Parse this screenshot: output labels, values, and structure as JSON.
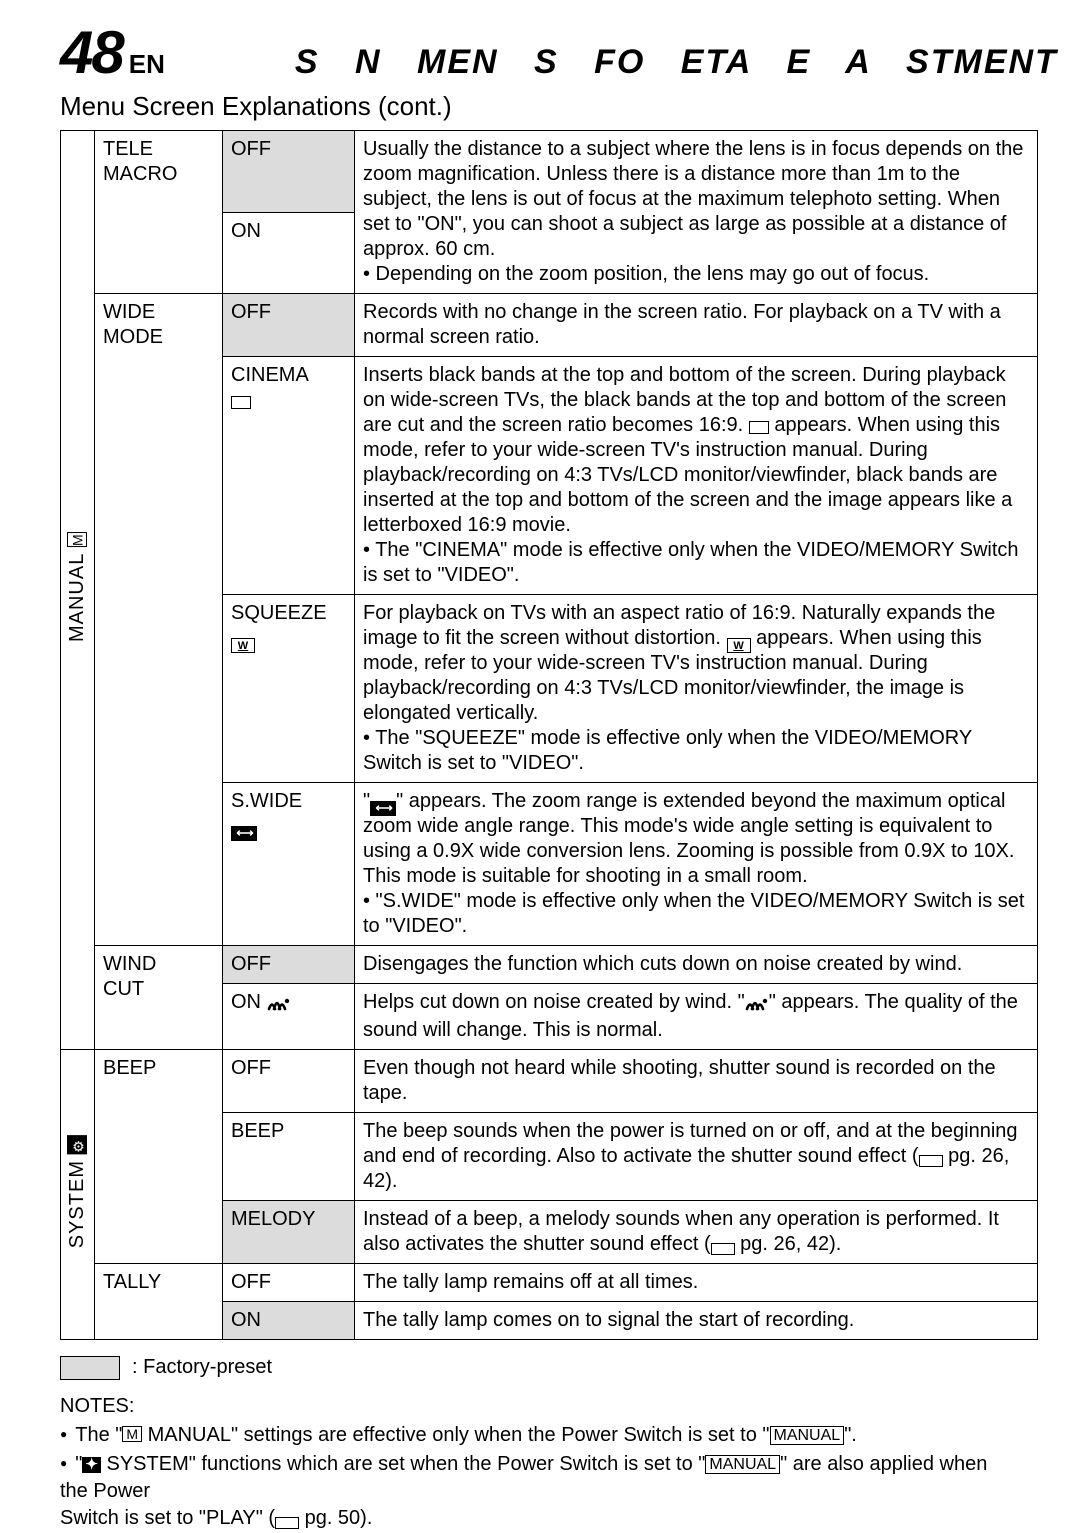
{
  "header": {
    "page_number": "48",
    "lang": "EN",
    "title": "S N   MEN  S FO    ETA  E   A     STMENT"
  },
  "subheading": "Menu Screen Explanations (cont.)",
  "categories": [
    {
      "side_label": "MANUAL",
      "side_icon": "M",
      "side_icon_style": "outline",
      "items": [
        {
          "name": "TELE MACRO",
          "rows": [
            {
              "option": "OFF",
              "preset": true,
              "rowspan_desc_from_first": 2,
              "desc_parts": [
                "Usually the distance to a subject where the lens is in focus depends on the zoom magnification. Unless there is a distance more than 1m to the subject, the lens is out of focus at the maximum telephoto setting. When set to \"ON\", you can shoot a subject as large as possible at a distance of approx. 60 cm.",
                "• Depending on the zoom position, the lens may go out of focus."
              ]
            },
            {
              "option": "ON",
              "preset": false
            }
          ]
        },
        {
          "name": "WIDE MODE",
          "rows": [
            {
              "option": "OFF",
              "preset": true,
              "desc_parts": [
                "Records with no change in the screen ratio. For playback on a TV with a normal screen ratio."
              ]
            },
            {
              "option": "CINEMA",
              "option_icon": "cinema",
              "preset": false,
              "desc_parts": [
                "Inserts black bands at the top and bottom of the screen. During playback on wide-screen TVs, the black bands at the top and bottom of the screen are cut and the screen ratio becomes 16:9. {ICON:cinema-sm} appears. When using this mode, refer to your wide-screen TV's instruction manual. During playback/recording on 4:3 TVs/LCD monitor/viewfinder, black bands are inserted at the top and bottom of the screen and the image appears like a letterboxed 16:9 movie.",
                "• The \"CINEMA\" mode is effective only when the VIDEO/MEMORY Switch is set to \"VIDEO\"."
              ]
            },
            {
              "option": "SQUEEZE",
              "option_icon": "squeeze",
              "preset": false,
              "desc_parts": [
                "For playback on TVs with an aspect ratio of 16:9. Naturally expands the image to fit the screen without distortion. {ICON:squeeze-sm} appears. When using this mode, refer to your wide-screen TV's instruction manual. During playback/recording on 4:3 TVs/LCD monitor/viewfinder, the image is elongated vertically.",
                "• The \"SQUEEZE\" mode is effective only when the VIDEO/MEMORY Switch is set to \"VIDEO\"."
              ]
            },
            {
              "option": "S.WIDE",
              "option_icon": "swide",
              "preset": false,
              "desc_parts": [
                "\"{ICON:swide-sm}\" appears. The zoom range is extended beyond the maximum optical zoom wide angle range. This mode's wide angle setting is equivalent to using a 0.9X wide conversion lens. Zooming is possible from 0.9X to 10X. This mode is suitable for shooting in a small room.",
                "• \"S.WIDE\" mode is effective only when the VIDEO/MEMORY Switch is set to \"VIDEO\"."
              ]
            }
          ]
        },
        {
          "name": "WIND CUT",
          "rows": [
            {
              "option": "OFF",
              "preset": true,
              "desc_parts": [
                "Disengages the function which cuts down on noise created by wind."
              ]
            },
            {
              "option": "ON",
              "option_icon": "wind",
              "option_icon_inline": true,
              "preset": false,
              "desc_parts": [
                "Helps cut down on noise created by wind. \"{ICON:wind-sm}\" appears. The quality of the sound will change. This is normal."
              ]
            }
          ]
        }
      ]
    },
    {
      "side_label": "SYSTEM",
      "side_icon": "⚙",
      "side_icon_style": "filled",
      "items": [
        {
          "name": "BEEP",
          "rows": [
            {
              "option": "OFF",
              "preset": false,
              "desc_parts": [
                "Even though not heard while shooting, shutter sound is recorded on the tape."
              ]
            },
            {
              "option": "BEEP",
              "preset": false,
              "desc_parts": [
                "The beep sounds when the power is turned on or off, and at the beginning and end of recording. Also to activate the shutter sound effect ({ICON:pref} pg. 26, 42)."
              ]
            },
            {
              "option": "MELODY",
              "preset": true,
              "desc_parts": [
                "Instead of a beep, a melody sounds when any operation is performed. It also activates the shutter sound effect ({ICON:pref} pg. 26, 42)."
              ]
            }
          ]
        },
        {
          "name": "TALLY",
          "rows": [
            {
              "option": "OFF",
              "preset": false,
              "desc_parts": [
                "The tally lamp remains off at all times."
              ]
            },
            {
              "option": "ON",
              "preset": true,
              "desc_parts": [
                "The tally lamp comes on to signal the start of recording."
              ]
            }
          ]
        }
      ]
    }
  ],
  "footer": {
    "factory_preset": ": Factory-preset",
    "notes_heading": "NOTES:",
    "notes": [
      "The \"{ICON:m-box} MANUAL\" settings are effective only when the Power Switch is set to \"{BOX:MANUAL}\".",
      "\"{ICON:sys-box} SYSTEM\" functions which are set when the Power Switch is set to \"{BOX:MANUAL}\" are also applied when the Power {BR}Switch is set to \"PLAY\" ({ICON:pref} pg. 50)."
    ]
  }
}
